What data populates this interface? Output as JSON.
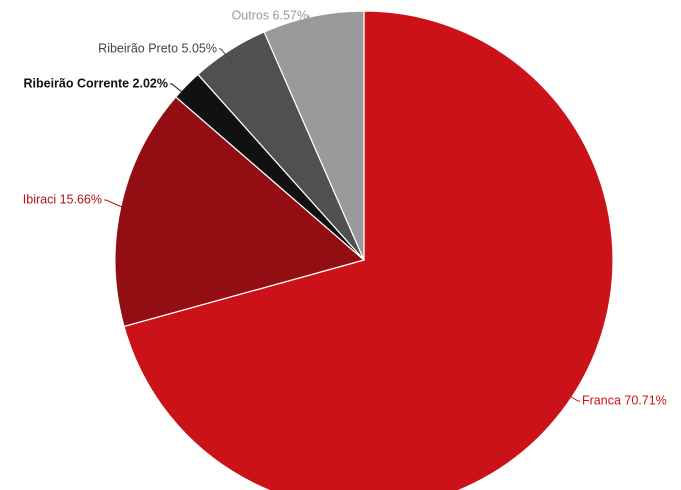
{
  "chart_data": {
    "type": "pie",
    "title": "",
    "start": "12 o'clock",
    "direction": "clockwise",
    "slices": [
      {
        "name": "Franca",
        "value": 70.71,
        "label": "Franca 70.71%",
        "color": "#cc1219",
        "label_color": "#cc1219"
      },
      {
        "name": "Ibiraci",
        "value": 15.66,
        "label": "Ibiraci 15.66%",
        "color": "#930e12",
        "label_color": "#b3121a"
      },
      {
        "name": "Ribeirão Corrente",
        "value": 2.02,
        "label": "Ribeirão Corrente 2.02%",
        "color": "#111111",
        "label_color": "#111111"
      },
      {
        "name": "Ribeirão Preto",
        "value": 5.05,
        "label": "Ribeirão Preto 5.05%",
        "color": "#505050",
        "label_color": "#444444"
      },
      {
        "name": "Outros",
        "value": 6.57,
        "label": "Outros 6.57%",
        "color": "#9a9a9a",
        "label_color": "#999999"
      }
    ]
  }
}
